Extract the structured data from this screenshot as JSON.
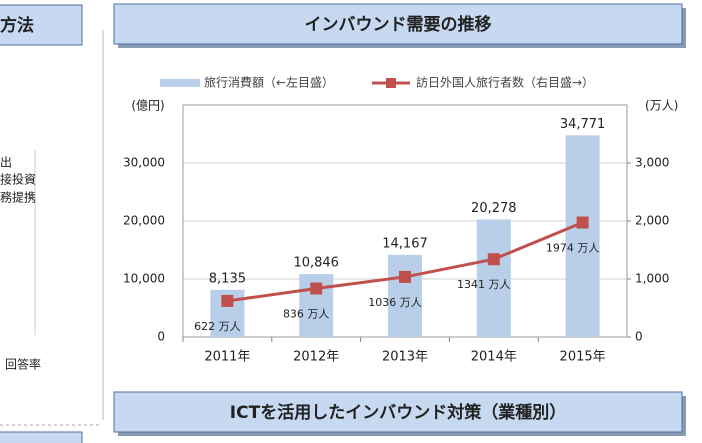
{
  "side_panel": {
    "title": "方法",
    "lines": [
      "出",
      "接投資",
      "務提携"
    ],
    "footer": "回答率"
  },
  "chart_data": {
    "type": "bar-line",
    "title": "インバウンド需要の推移",
    "footer_title": "ICTを活用したインバウンド対策（業種別）",
    "y_label": "(億円)",
    "y2_label": "(万人)",
    "categories": [
      "2011年",
      "2012年",
      "2013年",
      "2014年",
      "2015年"
    ],
    "series": [
      {
        "name": "旅行消費額（←左目盛）",
        "type": "bar",
        "color": "#b9cfe9",
        "values": [
          8135,
          10846,
          14167,
          20278,
          34771
        ],
        "value_labels": [
          "8,135",
          "10,846",
          "14,167",
          "20,278",
          "34,771"
        ]
      },
      {
        "name": "訪日外国人旅行者数（右目盛→）",
        "type": "line",
        "axis": "y2",
        "color": "#c0504d",
        "values": [
          622,
          836,
          1036,
          1341,
          1974
        ],
        "value_labels": [
          "622 万人",
          "836 万人",
          "1036 万人",
          "1341 万人",
          "1974 万人"
        ]
      }
    ],
    "ylim": [
      0,
      40000
    ],
    "yticks": [
      0,
      {
        "value": 10000,
        "label": "10,000"
      },
      {
        "value": 20000,
        "label": "20,000"
      },
      {
        "value": 30000,
        "label": "30,000"
      }
    ],
    "y2lim": [
      0,
      4000
    ],
    "y2ticks": [
      0,
      {
        "value": 1000,
        "label": "1,000"
      },
      {
        "value": 2000,
        "label": "2,000"
      },
      {
        "value": 3000,
        "label": "3,000"
      }
    ],
    "grid": true,
    "legend": "top"
  }
}
